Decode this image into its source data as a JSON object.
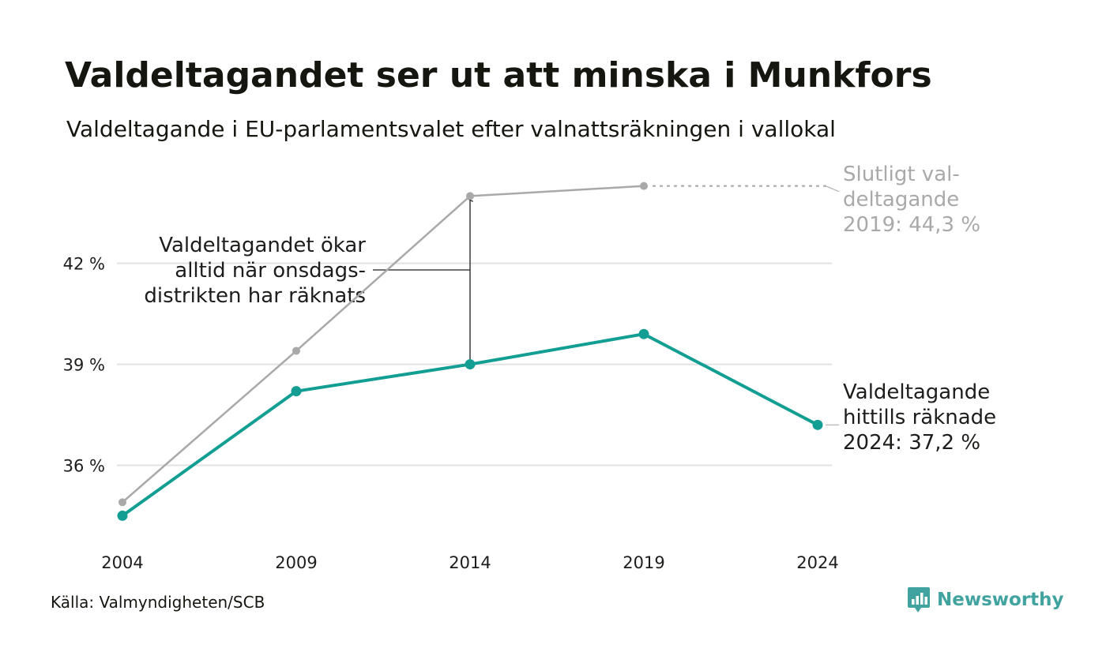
{
  "title": "Valdeltagandet ser ut att minska i Munkfors",
  "subtitle": "Valdeltagande i EU-parlamentsvalet efter valnattsräkningen i vallokal",
  "source": "Källa: Valmyndigheten/SCB",
  "brand": {
    "name": "Newsworthy",
    "logo_icon": "newsworthy-chart-bubble-icon"
  },
  "colors": {
    "counted": "#139e94",
    "final": "#a9a9a9",
    "grid": "#e2e2e2",
    "text": "#1d1d1b",
    "final_label": "#a9a9a9"
  },
  "chart_data": {
    "type": "line",
    "categories": [
      "2004",
      "2009",
      "2014",
      "2019",
      "2024"
    ],
    "ylim": [
      33.9,
      45.3
    ],
    "yticks": [
      {
        "value": 36,
        "label": "36 %"
      },
      {
        "value": 39,
        "label": "39 %"
      },
      {
        "value": 42,
        "label": "42 %"
      }
    ],
    "grid": true,
    "series": [
      {
        "key": "final",
        "values": [
          34.9,
          39.4,
          44.0,
          44.3,
          null
        ]
      },
      {
        "key": "counted",
        "values": [
          34.5,
          38.2,
          39.0,
          39.9,
          37.2
        ]
      }
    ],
    "annotations": {
      "gap": [
        "Valdeltagandet ökar",
        "alltid när onsdags-",
        "distrikten har räknats"
      ],
      "final_label": [
        "Slutligt val-",
        "deltagande",
        "2019: 44,3 %"
      ],
      "counted_label": [
        "Valdeltagande",
        "hittills räknade",
        "2024: 37,2 %"
      ]
    }
  }
}
